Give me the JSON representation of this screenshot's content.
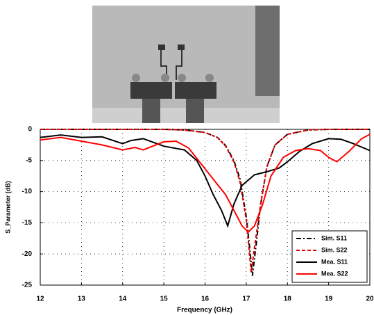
{
  "chart_data": {
    "type": "line",
    "xlabel": "Frequency (GHz)",
    "ylabel": "S_Parameter (dB)",
    "xlim": [
      12,
      20
    ],
    "ylim": [
      -25,
      0
    ],
    "xticks": [
      12,
      13,
      14,
      15,
      16,
      17,
      18,
      19,
      20
    ],
    "yticks": [
      0,
      -5,
      -10,
      -15,
      -20,
      -25
    ],
    "grid": true,
    "legend": "lower right",
    "series": [
      {
        "name": "Sim. S11",
        "color": "#000000",
        "dash": "dashdot",
        "x": [
          12,
          13,
          14,
          15,
          15.5,
          16,
          16.3,
          16.5,
          16.7,
          16.85,
          17,
          17.1,
          17.15,
          17.25,
          17.35,
          17.5,
          17.7,
          18,
          18.5,
          19,
          20
        ],
        "values": [
          0,
          0,
          0,
          0,
          -0.1,
          -0.5,
          -1.3,
          -2.6,
          -5,
          -8,
          -14,
          -20,
          -23.5,
          -18,
          -12,
          -6,
          -2.5,
          -0.8,
          -0.1,
          0,
          0
        ]
      },
      {
        "name": "Sim. S22",
        "color": "#e00000",
        "dash": "dashed",
        "x": [
          12,
          13,
          14,
          15,
          15.5,
          16,
          16.3,
          16.5,
          16.7,
          16.85,
          17,
          17.08,
          17.12,
          17.2,
          17.35,
          17.5,
          17.7,
          18,
          18.5,
          19,
          20
        ],
        "values": [
          0,
          0,
          0,
          0,
          -0.1,
          -0.5,
          -1.3,
          -2.7,
          -5.2,
          -8.5,
          -14.5,
          -20,
          -23,
          -19,
          -12,
          -6,
          -2.5,
          -0.8,
          -0.1,
          0,
          0
        ]
      },
      {
        "name": "Mea. S11",
        "color": "#000000",
        "dash": "solid",
        "x": [
          12,
          12.5,
          13,
          13.5,
          14,
          14.2,
          14.5,
          15,
          15.5,
          15.8,
          16,
          16.2,
          16.4,
          16.55,
          16.7,
          16.9,
          17.2,
          17.5,
          17.8,
          18,
          18.3,
          18.6,
          19,
          19.3,
          19.6,
          20
        ],
        "values": [
          -1.3,
          -0.9,
          -1.3,
          -1.2,
          -2.3,
          -1.8,
          -1.5,
          -2.7,
          -3.3,
          -5,
          -7.5,
          -10.5,
          -13,
          -15.5,
          -12,
          -9,
          -7.3,
          -6.8,
          -6.2,
          -5.2,
          -3.5,
          -2.3,
          -1.5,
          -1.6,
          -2.3,
          -3.4
        ]
      },
      {
        "name": "Mea. S22",
        "color": "#ff0000",
        "dash": "solid",
        "x": [
          12,
          12.5,
          13,
          13.5,
          14,
          14.3,
          14.5,
          15,
          15.3,
          15.6,
          15.9,
          16.2,
          16.5,
          16.7,
          16.9,
          17.05,
          17.2,
          17.4,
          17.6,
          17.9,
          18.2,
          18.5,
          18.8,
          19,
          19.2,
          19.5,
          19.8,
          20
        ],
        "values": [
          -1.7,
          -1.3,
          -1.9,
          -2.5,
          -3.3,
          -2.9,
          -3.3,
          -2,
          -1.9,
          -3,
          -5.5,
          -8,
          -10.5,
          -13,
          -15.5,
          -16.5,
          -15.5,
          -12,
          -7.5,
          -4.5,
          -3.4,
          -3.1,
          -3.4,
          -4.5,
          -5.2,
          -3.5,
          -1.5,
          -0.8
        ]
      }
    ]
  }
}
